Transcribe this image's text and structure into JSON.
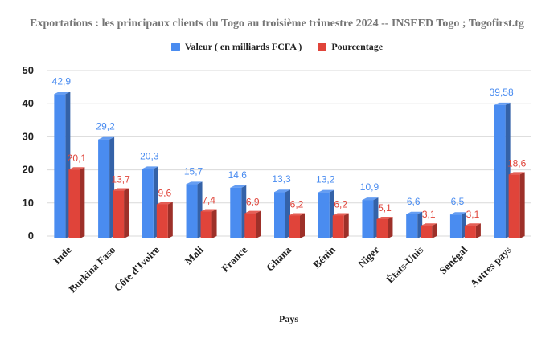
{
  "chart_data": {
    "type": "bar",
    "title": "Exportations : les principaux clients du Togo au troisième trimestre 2024 -- INSEED Togo ; Togofirst.tg",
    "xlabel": "Pays",
    "ylabel": "",
    "ylim": [
      0,
      50
    ],
    "yticks": [
      0,
      10,
      20,
      30,
      40,
      50
    ],
    "grid": true,
    "legend_position": "top",
    "categories": [
      "Inde",
      "Burkina Faso",
      "Côte d'Ivoire",
      "Mali",
      "France",
      "Ghana",
      "Bénin",
      "Niger",
      "États-Unis",
      "Sénégal",
      "Autres pays"
    ],
    "series": [
      {
        "name": "Valeur ( en milliards FCFA )",
        "color": "#4a8cf0",
        "values": [
          42.9,
          29.2,
          20.3,
          15.7,
          14.6,
          13.3,
          13.2,
          10.9,
          6.6,
          6.5,
          39.58
        ],
        "labels": [
          "42,9",
          "29,2",
          "20,3",
          "15,7",
          "14,6",
          "13,3",
          "13,2",
          "10,9",
          "6,6",
          "6,5",
          "39,58"
        ]
      },
      {
        "name": "Pourcentage",
        "color": "#e0443a",
        "values": [
          20.1,
          13.7,
          9.6,
          7.4,
          6.9,
          6.2,
          6.2,
          5.1,
          3.1,
          3.1,
          18.6
        ],
        "labels": [
          "20,1",
          "13,7",
          "9,6",
          "7,4",
          "6,9",
          "6,2",
          "6,2",
          "5,1",
          "3,1",
          "3,1",
          "18,6"
        ]
      }
    ]
  }
}
